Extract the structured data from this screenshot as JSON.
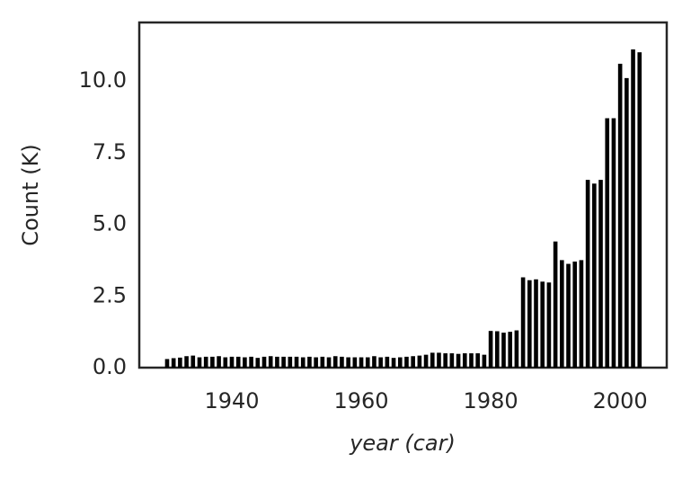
{
  "chart_data": {
    "type": "bar",
    "xlabel": "year (car)",
    "ylabel": "Count (K)",
    "x": [
      1930,
      1931,
      1932,
      1933,
      1934,
      1935,
      1936,
      1937,
      1938,
      1939,
      1940,
      1941,
      1942,
      1943,
      1944,
      1945,
      1946,
      1947,
      1948,
      1949,
      1950,
      1951,
      1952,
      1953,
      1954,
      1955,
      1956,
      1957,
      1958,
      1959,
      1960,
      1961,
      1962,
      1963,
      1964,
      1965,
      1966,
      1967,
      1968,
      1969,
      1970,
      1971,
      1972,
      1973,
      1974,
      1975,
      1976,
      1977,
      1978,
      1979,
      1980,
      1981,
      1982,
      1983,
      1984,
      1985,
      1986,
      1987,
      1988,
      1989,
      1990,
      1991,
      1992,
      1993,
      1994,
      1995,
      1996,
      1997,
      1998,
      1999,
      2000,
      2001,
      2002,
      2003
    ],
    "values": [
      0.3,
      0.33,
      0.35,
      0.4,
      0.42,
      0.36,
      0.38,
      0.38,
      0.4,
      0.36,
      0.38,
      0.38,
      0.36,
      0.38,
      0.34,
      0.38,
      0.4,
      0.38,
      0.38,
      0.38,
      0.38,
      0.36,
      0.38,
      0.36,
      0.38,
      0.36,
      0.4,
      0.38,
      0.36,
      0.36,
      0.36,
      0.36,
      0.4,
      0.36,
      0.38,
      0.34,
      0.36,
      0.38,
      0.4,
      0.42,
      0.45,
      0.52,
      0.52,
      0.5,
      0.5,
      0.48,
      0.5,
      0.5,
      0.5,
      0.45,
      1.28,
      1.27,
      1.22,
      1.25,
      1.3,
      3.15,
      3.05,
      3.08,
      3.0,
      2.97,
      4.4,
      3.75,
      3.62,
      3.7,
      3.75,
      6.55,
      6.42,
      6.55,
      8.7,
      8.7,
      10.6,
      10.1,
      11.1,
      11.0
    ],
    "color": "#000000",
    "xlim": [
      1925.7,
      2007.2
    ],
    "xticks": [
      1940,
      1960,
      1980,
      2000
    ],
    "ylim": [
      0,
      12.04
    ],
    "yticks": [
      {
        "value": 0,
        "label": "0.0"
      },
      2.5,
      {
        "value": 5,
        "label": "5.0"
      },
      7.5,
      {
        "value": 10,
        "label": "10.0"
      }
    ]
  }
}
